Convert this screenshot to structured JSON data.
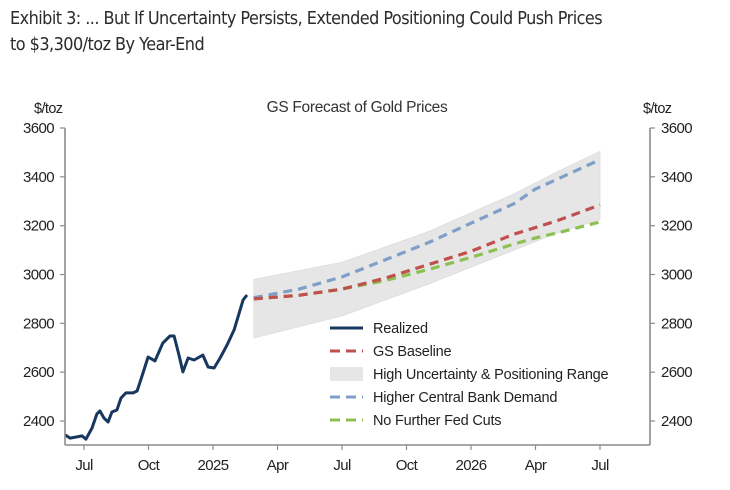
{
  "exhibit": {
    "title_line1": "Exhibit 3: ... But If Uncertainty Persists, Extended Positioning Could Push Prices",
    "title_line2": "to $3,300/toz By Year-End"
  },
  "chart_data": {
    "type": "line",
    "title": "GS Forecast of Gold Prices",
    "ylabel_left": "$/toz",
    "ylabel_right": "$/toz",
    "ylim": [
      2300,
      3600
    ],
    "yticks": [
      2400,
      2600,
      2800,
      3000,
      3200,
      3400,
      3600
    ],
    "x_unit": "months since Jan 2024",
    "xlim": [
      5.1,
      31.6
    ],
    "xticks": [
      {
        "m": 6,
        "label": "Jul"
      },
      {
        "m": 9,
        "label": "Oct"
      },
      {
        "m": 12,
        "label": "2025"
      },
      {
        "m": 15,
        "label": "Apr"
      },
      {
        "m": 18,
        "label": "Jul"
      },
      {
        "m": 21,
        "label": "Oct"
      },
      {
        "m": 24,
        "label": "2026"
      },
      {
        "m": 27,
        "label": "Apr"
      },
      {
        "m": 30,
        "label": "Jul"
      }
    ],
    "legend_position": "bottom-center",
    "series": [
      {
        "name": "Realized",
        "style": "solid",
        "color": "#17375e",
        "points": [
          [
            5.12,
            2343
          ],
          [
            5.35,
            2330
          ],
          [
            5.67,
            2335
          ],
          [
            5.91,
            2339
          ],
          [
            6.09,
            2326
          ],
          [
            6.37,
            2371
          ],
          [
            6.6,
            2429
          ],
          [
            6.74,
            2441
          ],
          [
            6.93,
            2412
          ],
          [
            7.12,
            2396
          ],
          [
            7.3,
            2437
          ],
          [
            7.53,
            2445
          ],
          [
            7.72,
            2494
          ],
          [
            7.95,
            2515
          ],
          [
            8.28,
            2515
          ],
          [
            8.47,
            2523
          ],
          [
            8.7,
            2584
          ],
          [
            8.98,
            2662
          ],
          [
            9.3,
            2646
          ],
          [
            9.67,
            2720
          ],
          [
            10.0,
            2748
          ],
          [
            10.19,
            2748
          ],
          [
            10.42,
            2670
          ],
          [
            10.6,
            2601
          ],
          [
            10.84,
            2658
          ],
          [
            11.12,
            2650
          ],
          [
            11.53,
            2670
          ],
          [
            11.77,
            2621
          ],
          [
            12.05,
            2617
          ],
          [
            12.33,
            2658
          ],
          [
            12.65,
            2711
          ],
          [
            12.98,
            2773
          ],
          [
            13.26,
            2855
          ],
          [
            13.4,
            2896
          ],
          [
            13.58,
            2916
          ]
        ]
      },
      {
        "name": "GS Baseline",
        "style": "dashed",
        "color": "#c0504d",
        "points": [
          [
            13.9,
            2900
          ],
          [
            16,
            2915
          ],
          [
            18,
            2940
          ],
          [
            20,
            2985
          ],
          [
            22,
            3040
          ],
          [
            24,
            3095
          ],
          [
            26,
            3165
          ],
          [
            28,
            3220
          ],
          [
            30,
            3285
          ]
        ]
      },
      {
        "name": "High Uncertainty & Positioning Range",
        "style": "band",
        "color": "#e6e6e6",
        "upper": [
          [
            13.9,
            2980
          ],
          [
            18,
            3050
          ],
          [
            22,
            3175
          ],
          [
            26,
            3330
          ],
          [
            28,
            3420
          ],
          [
            30,
            3505
          ]
        ],
        "lower": [
          [
            13.9,
            2740
          ],
          [
            18,
            2830
          ],
          [
            22,
            2960
          ],
          [
            26,
            3100
          ],
          [
            28,
            3170
          ],
          [
            30,
            3225
          ]
        ]
      },
      {
        "name": "Higher Central Bank Demand",
        "style": "dashed",
        "color": "#7f9ec8",
        "points": [
          [
            13.9,
            2905
          ],
          [
            16,
            2940
          ],
          [
            18,
            2990
          ],
          [
            20,
            3060
          ],
          [
            22,
            3130
          ],
          [
            24,
            3210
          ],
          [
            26,
            3290
          ],
          [
            27,
            3350
          ],
          [
            28,
            3390
          ],
          [
            30,
            3470
          ]
        ]
      },
      {
        "name": "No Further Fed Cuts",
        "style": "dashed",
        "color": "#8cc152",
        "points": [
          [
            13.9,
            2900
          ],
          [
            16,
            2915
          ],
          [
            18,
            2940
          ],
          [
            20,
            2975
          ],
          [
            22,
            3020
          ],
          [
            24,
            3070
          ],
          [
            26,
            3125
          ],
          [
            27,
            3150
          ],
          [
            28,
            3170
          ],
          [
            30,
            3215
          ]
        ]
      }
    ],
    "legend": [
      {
        "label": "Realized",
        "series": 0
      },
      {
        "label": "GS Baseline",
        "series": 1
      },
      {
        "label": "High Uncertainty & Positioning Range",
        "series": 2
      },
      {
        "label": "Higher Central Bank Demand",
        "series": 3
      },
      {
        "label": "No Further Fed Cuts",
        "series": 4
      }
    ]
  }
}
